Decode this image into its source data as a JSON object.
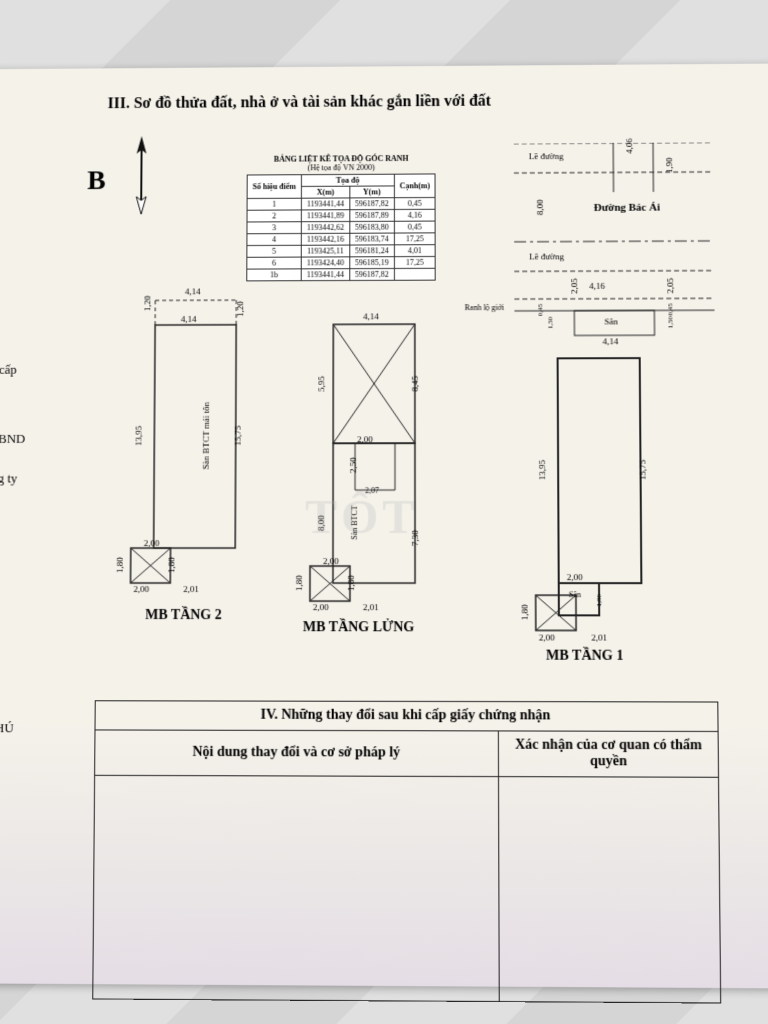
{
  "section3_title": "III. Sơ đồ thửa đất, nhà ở và tài sản khác gắn liền với đất",
  "compass_label": "B",
  "coord_table": {
    "caption": "BẢNG LIỆT KÊ TỌA ĐỘ GÓC RANH",
    "subcaption": "(Hệ tọa độ VN 2000)",
    "head": {
      "col1": "Số hiệu điểm",
      "col2": "Tọa độ",
      "x": "X(m)",
      "y": "Y(m)",
      "edge": "Cạnh(m)"
    },
    "rows": [
      {
        "n": "1",
        "x": "1193441,44",
        "y": "596187,82",
        "e": "0,45"
      },
      {
        "n": "2",
        "x": "1193441,89",
        "y": "596187,89",
        "e": "4,16"
      },
      {
        "n": "3",
        "x": "1193442,62",
        "y": "596183,80",
        "e": "0,45"
      },
      {
        "n": "4",
        "x": "1193442,16",
        "y": "596183,74",
        "e": "17,25"
      },
      {
        "n": "5",
        "x": "1193425,11",
        "y": "596181,24",
        "e": "4,01"
      },
      {
        "n": "6",
        "x": "1193424,40",
        "y": "596185,19",
        "e": "17,25"
      },
      {
        "n": "1b",
        "x": "1193441,44",
        "y": "596187,82",
        "e": ""
      }
    ]
  },
  "road": {
    "sidewalk": "Lề đường",
    "name": "Đường Bác Ái",
    "lot_line": "Ranh lộ giới",
    "dim_406": "4,06",
    "dim_190": "1,90",
    "dim_800": "8,00",
    "dim_416": "4,16",
    "dim_205": "2,05",
    "dim_045": "0,45",
    "dim_150": "1,50",
    "dim_414": "4,14",
    "san": "Sân"
  },
  "plans": {
    "t2_label": "MB TẦNG 2",
    "tl_label": "MB TẦNG LỬNG",
    "t1_label": "MB TẦNG 1",
    "dim_414": "4,14",
    "dim_120": "1,20",
    "dim_1395": "13,95",
    "dim_1575": "15,75",
    "dim_200": "2,00",
    "dim_180": "1,80",
    "dim_201": "2,01",
    "dim_595": "5,95",
    "dim_845": "8,45",
    "dim_250": "2,50",
    "dim_207": "2,07",
    "dim_800": "8,00",
    "dim_730": "7,30",
    "san_btct_ton": "Sàn BTCT mái tôn",
    "san_btct": "Sàn BTCT",
    "san": "Sân"
  },
  "partial": {
    "cap": "cấp",
    "bnd": "BND",
    "ty": "g ty",
    "phu": "HÚ"
  },
  "section4": {
    "title": "IV. Những thay đổi sau khi cấp giấy chứng nhận",
    "col1": "Nội dung thay đổi và cơ sở pháp lý",
    "col2": "Xác nhận của cơ quan có thẩm quyền"
  },
  "watermark": "TỐT",
  "colors": {
    "paper": "#f5f2ea",
    "ink": "#1a1a1a",
    "bg": "#d8d8d8"
  }
}
